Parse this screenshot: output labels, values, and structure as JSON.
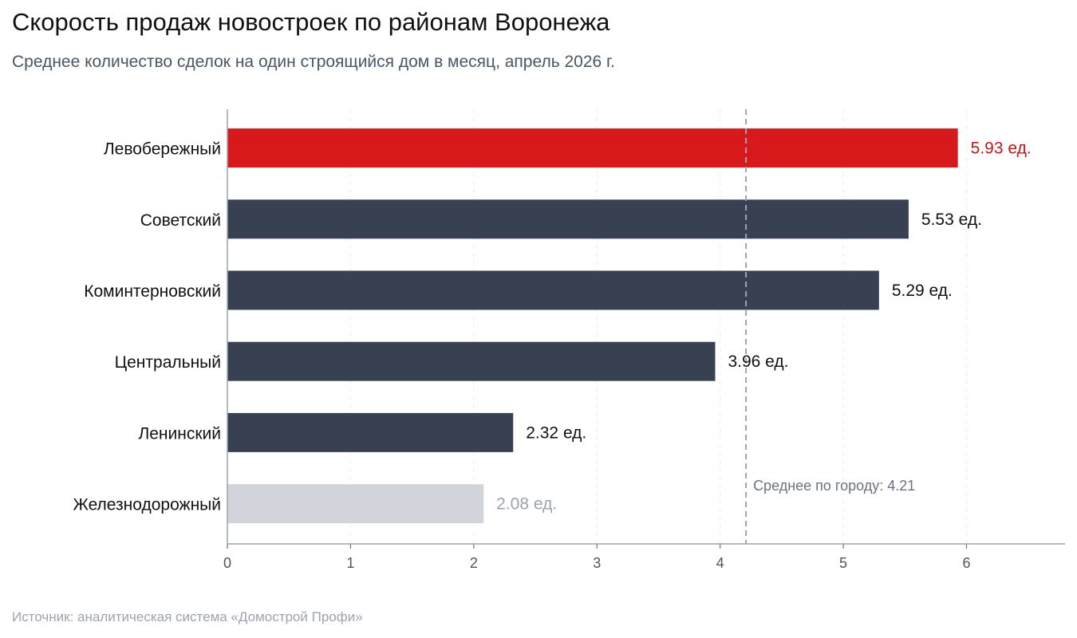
{
  "title": "Скорость продаж новостроек по районам Воронежа",
  "subtitle": "Среднее количество сделок на один строящийся дом в месяц, апрель 2026 г.",
  "source": "Источник: аналитическая система «Домострой Профи»",
  "chart_data": {
    "type": "bar",
    "orientation": "horizontal",
    "categories": [
      "Левобережный",
      "Советский",
      "Коминтерновский",
      "Центральный",
      "Ленинский",
      "Железнодорожный"
    ],
    "values": [
      5.93,
      5.53,
      5.29,
      3.96,
      2.32,
      2.08
    ],
    "value_labels": [
      "5.93 ед.",
      "5.53 ед.",
      "5.29 ед.",
      "3.96 ед.",
      "2.32 ед.",
      "2.08 ед."
    ],
    "xlim": [
      0,
      6.8
    ],
    "xticks": [
      0,
      1,
      2,
      3,
      4,
      5,
      6
    ],
    "grid": "vertical dashed",
    "reference_line": {
      "value": 4.21,
      "label": "Среднее по городу: 4.21"
    },
    "colors": {
      "highlight": "#d7191c",
      "default": "#374151",
      "muted": "#d1d5db",
      "highlight_label": "#c5161a",
      "default_label": "#111111",
      "muted_label": "#9ca3af",
      "reference": "#9ca3af"
    },
    "bar_styles": [
      "highlight",
      "default",
      "default",
      "default",
      "default",
      "muted"
    ]
  }
}
